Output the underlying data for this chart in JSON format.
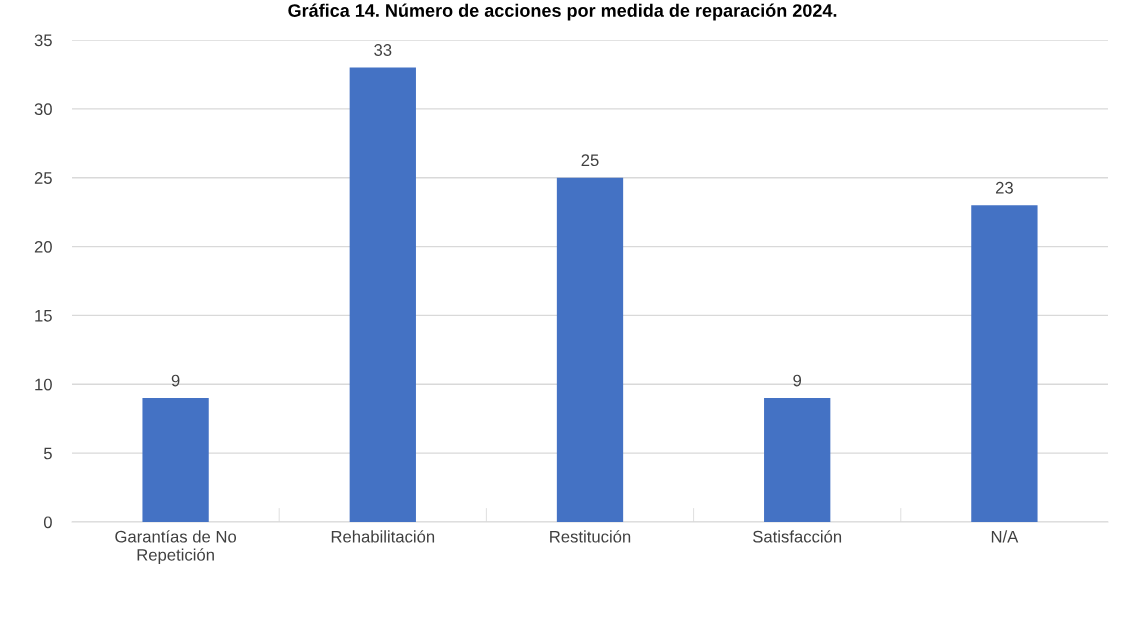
{
  "chart_data": {
    "type": "bar",
    "title": "Gráfica 14. Número de acciones por medida de reparación 2024.",
    "categories": [
      "Garantías de No\nRepetición",
      "Rehabilitación",
      "Restitución",
      "Satisfacción",
      "N/A"
    ],
    "values": [
      9,
      33,
      25,
      9,
      23
    ],
    "color": "#4472c4",
    "ylim": [
      0,
      35
    ],
    "yticks": [
      0,
      5,
      10,
      15,
      20,
      25,
      30,
      35
    ],
    "grid": "y",
    "data_labels": true
  }
}
